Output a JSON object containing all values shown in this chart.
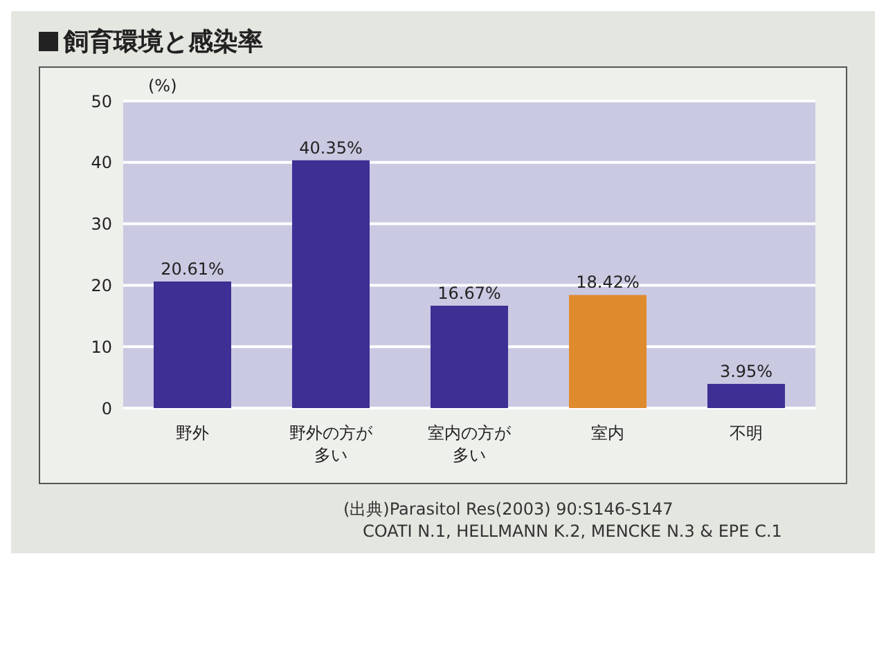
{
  "chart_data": {
    "type": "bar",
    "title": "飼育環境と感染率",
    "ylabel": "(%)",
    "categories": [
      "野外",
      "野外の方が多い",
      "室内の方が多い",
      "室内",
      "不明"
    ],
    "values": [
      20.61,
      40.35,
      16.67,
      18.42,
      3.95
    ],
    "value_labels": [
      "20.61%",
      "40.35%",
      "16.67%",
      "18.42%",
      "3.95%"
    ],
    "colors": [
      "#3d2f94",
      "#3d2f94",
      "#3d2f94",
      "#e08a2e",
      "#3d2f94"
    ],
    "ylim": [
      0,
      50
    ],
    "yticks": [
      0,
      10,
      20,
      30,
      40,
      50
    ],
    "grid": "y",
    "annotations": [
      "(出典)Parasitol Res(2003) 90:S146-S147",
      "COATI N.1, HELLMANN K.2, MENCKE N.3 & EPE C.1"
    ]
  }
}
